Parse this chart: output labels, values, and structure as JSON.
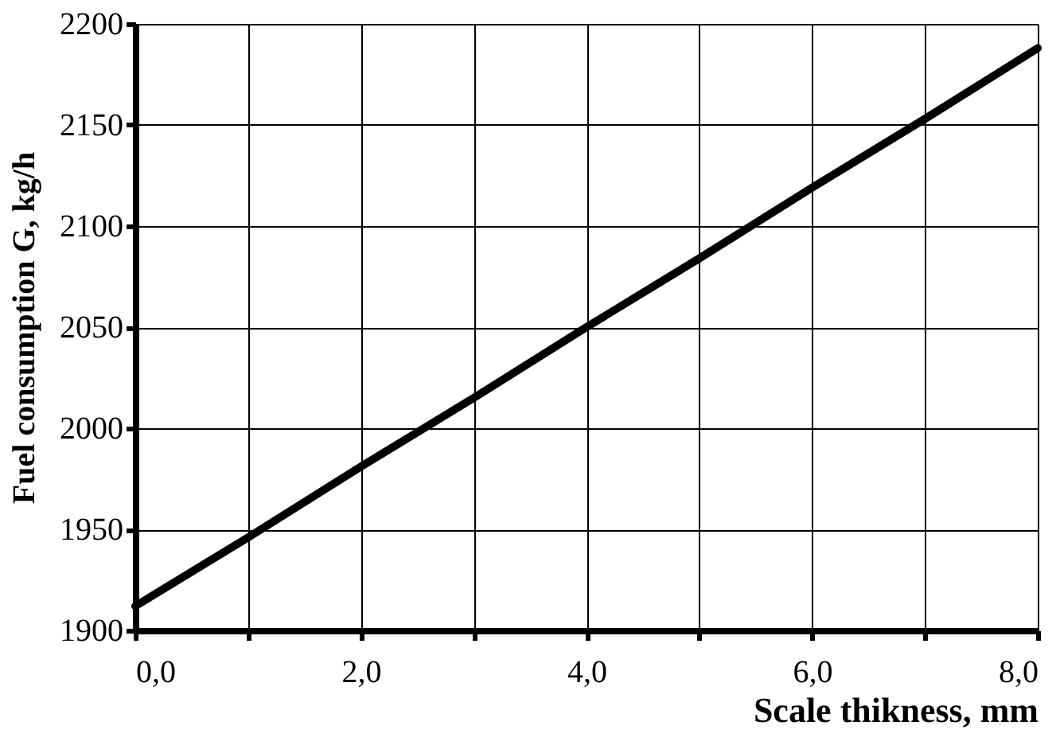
{
  "chart_data": {
    "type": "line",
    "xlabel": "Scale thikness, mm",
    "ylabel": "Fuel consumption G, kg/h",
    "x": [
      0,
      1,
      2,
      3,
      4,
      5,
      6,
      7,
      8
    ],
    "series": [
      {
        "color": "#000000",
        "values": [
          1912,
          1946,
          1981,
          2015,
          2050,
          2084,
          2119,
          2153,
          2188
        ]
      }
    ],
    "xlim": [
      0,
      8
    ],
    "ylim": [
      1900,
      2200
    ],
    "xticks": [
      {
        "value": 0,
        "label": "0,0"
      },
      {
        "value": 1,
        "label": null
      },
      {
        "value": 2,
        "label": "2,0"
      },
      {
        "value": 3,
        "label": null
      },
      {
        "value": 4,
        "label": "4,0"
      },
      {
        "value": 5,
        "label": null
      },
      {
        "value": 6,
        "label": "6,0"
      },
      {
        "value": 7,
        "label": null
      },
      {
        "value": 8,
        "label": "8,0"
      }
    ],
    "yticks": [
      1900,
      1950,
      2000,
      2050,
      2100,
      2150,
      2200
    ],
    "grid": true,
    "legend": false,
    "marker": "none",
    "line_style": "solid"
  }
}
